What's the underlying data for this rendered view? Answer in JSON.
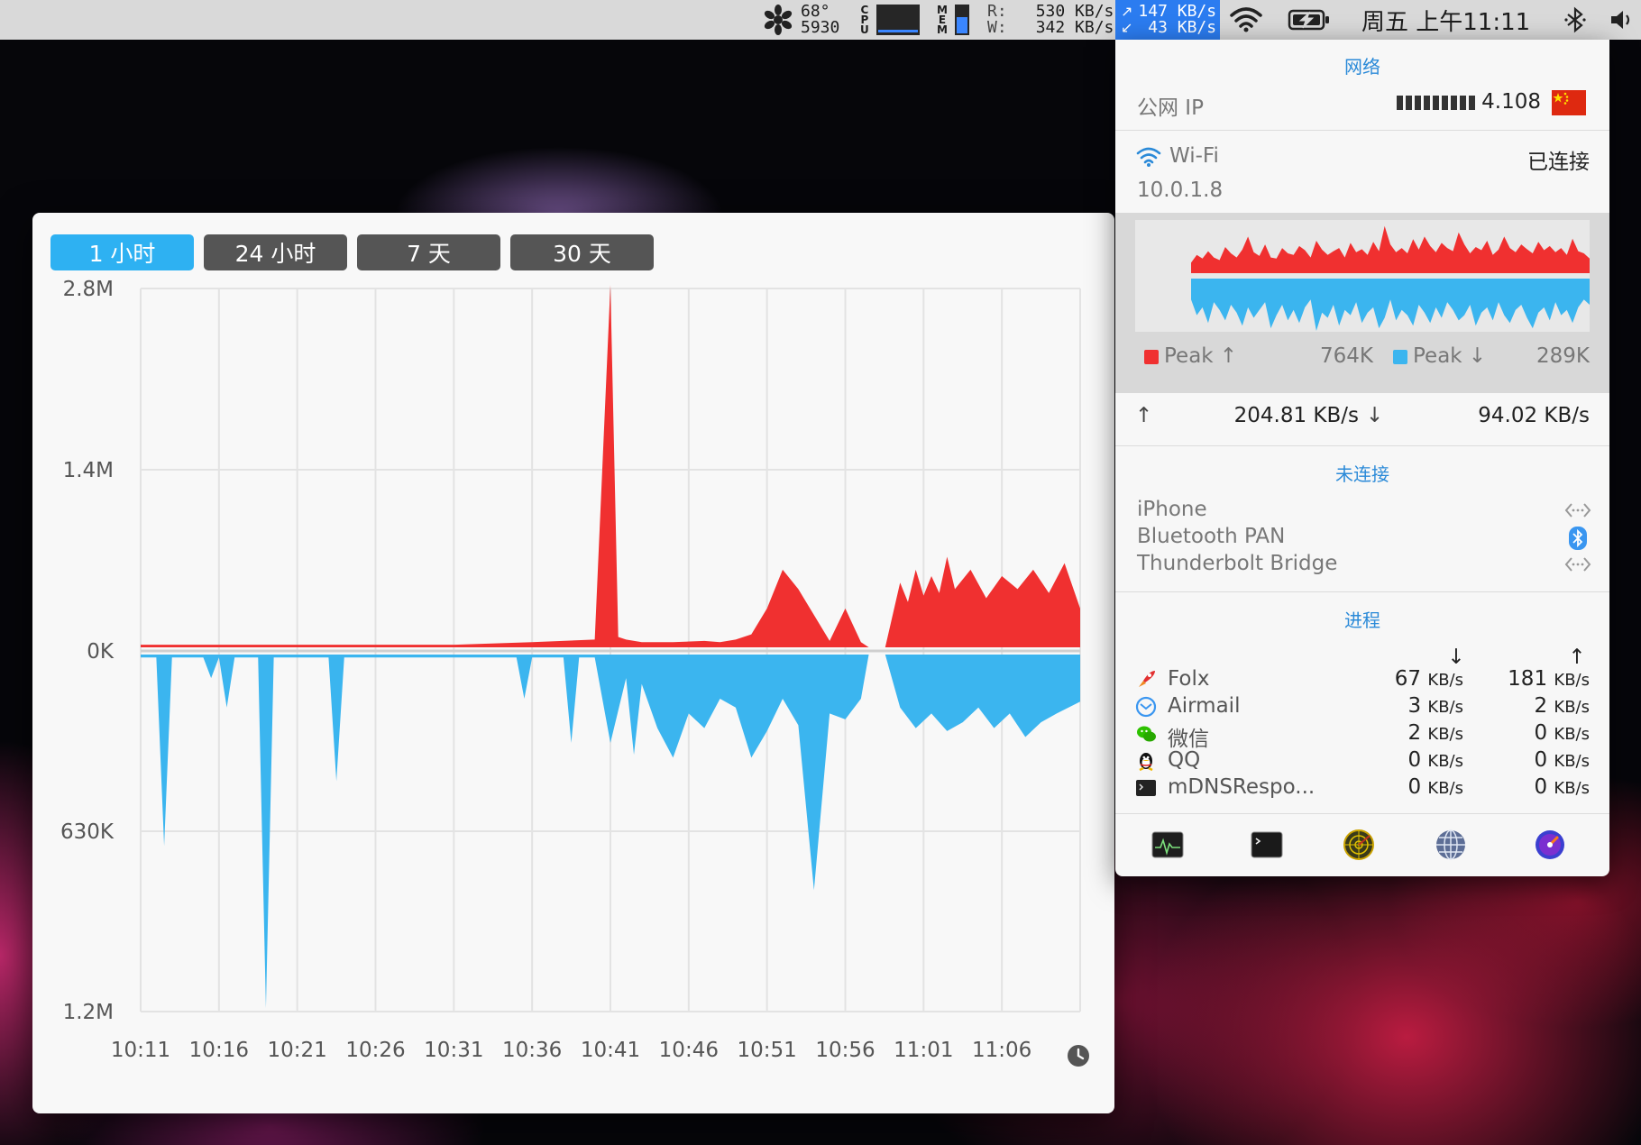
{
  "menubar": {
    "temp": "68°",
    "fan": "5930",
    "cpu_label": "CPU",
    "mem_label": "MEM",
    "disk_read_label": "R:",
    "disk_write_label": "W:",
    "disk_read": "530 KB/s",
    "disk_write": "342 KB/s",
    "net_up": "147 KB/s",
    "net_down": "43 KB/s",
    "clock": "周五 上午11:11"
  },
  "ranges": [
    "1 小时",
    "24 小时",
    "7 天",
    "30 天"
  ],
  "active_range": 0,
  "chart_data": {
    "type": "area",
    "yticks": [
      "2.8M",
      "1.4M",
      "0K",
      "630K",
      "1.2M"
    ],
    "xticks": [
      "10:11",
      "10:16",
      "10:21",
      "10:26",
      "10:31",
      "10:36",
      "10:41",
      "10:46",
      "10:51",
      "10:56",
      "11:01",
      "11:06"
    ],
    "upload_max": 2800,
    "download_max": 1200,
    "series": [
      {
        "name": "upload",
        "color": "#f03030",
        "x": [
          0,
          10,
          20,
          30,
          40,
          50,
          58,
          60,
          61,
          62,
          64,
          68,
          72,
          74,
          76,
          78,
          80,
          82,
          84,
          86,
          88,
          90,
          92,
          93,
          93.1,
          95,
          95.1,
          97,
          98,
          99,
          100,
          101,
          102,
          103,
          104,
          106,
          108,
          110,
          112,
          114,
          116,
          118,
          120
        ],
        "values": [
          20,
          20,
          20,
          20,
          20,
          40,
          60,
          2800,
          80,
          60,
          40,
          40,
          50,
          40,
          60,
          100,
          300,
          600,
          450,
          250,
          50,
          300,
          40,
          0,
          null,
          null,
          0,
          500,
          350,
          600,
          400,
          550,
          420,
          700,
          450,
          600,
          380,
          550,
          450,
          600,
          420,
          650,
          300
        ]
      },
      {
        "name": "download",
        "color": "#3bb5ef",
        "x": [
          0,
          2,
          3,
          4,
          6,
          8,
          9,
          10,
          11,
          12,
          14,
          15,
          16,
          17,
          18,
          20,
          24,
          25,
          26,
          30,
          36,
          40,
          48,
          49,
          50,
          54,
          55,
          56,
          58,
          60,
          62,
          63,
          64,
          66,
          68,
          70,
          72,
          74,
          76,
          78,
          80,
          82,
          84,
          86,
          88,
          90,
          92,
          93,
          93.1,
          95,
          95.1,
          97,
          99,
          101,
          103,
          105,
          107,
          109,
          111,
          113,
          115,
          117,
          120
        ],
        "values": [
          10,
          10,
          650,
          10,
          10,
          10,
          80,
          10,
          180,
          10,
          10,
          10,
          1200,
          10,
          10,
          10,
          10,
          430,
          10,
          10,
          10,
          10,
          10,
          150,
          10,
          10,
          300,
          10,
          10,
          300,
          80,
          340,
          100,
          250,
          350,
          200,
          250,
          150,
          180,
          350,
          260,
          150,
          240,
          800,
          200,
          220,
          150,
          0,
          null,
          null,
          0,
          180,
          250,
          200,
          260,
          230,
          180,
          250,
          200,
          280,
          230,
          200,
          160
        ]
      }
    ]
  },
  "panel": {
    "title": "网络",
    "public_ip_label": "公网 IP",
    "public_ip": "4.108",
    "wifi_name": "Wi-Fi",
    "wifi_status": "已连接",
    "local_ip": "10.0.1.8",
    "mini_chart": {
      "type": "area",
      "series": [
        {
          "name": "Peak ↑",
          "color": "#f03030",
          "values": [
            20,
            35,
            28,
            42,
            30,
            25,
            50,
            38,
            30,
            45,
            70,
            40,
            33,
            55,
            30,
            28,
            48,
            38,
            35,
            52,
            44,
            30,
            62,
            45,
            35,
            42,
            48,
            30,
            58,
            40,
            46,
            35,
            60,
            42,
            90,
            55,
            40,
            48,
            38,
            65,
            45,
            70,
            52,
            40,
            58,
            48,
            42,
            78,
            55,
            38,
            50,
            44,
            62,
            35,
            45,
            70,
            48,
            40,
            55,
            46,
            38,
            60,
            44,
            52,
            40,
            48,
            35,
            66,
            42,
            38,
            28
          ]
        },
        {
          "name": "Peak ↓",
          "color": "#3bb5ef",
          "values": [
            40,
            70,
            55,
            85,
            45,
            60,
            80,
            50,
            65,
            90,
            55,
            75,
            60,
            45,
            95,
            70,
            50,
            80,
            60,
            85,
            55,
            40,
            100,
            65,
            75,
            50,
            90,
            60,
            70,
            45,
            85,
            65,
            55,
            95,
            75,
            40,
            80,
            60,
            70,
            90,
            50,
            65,
            85,
            55,
            75,
            45,
            60,
            80,
            70,
            50,
            90,
            65,
            55,
            80,
            45,
            70,
            85,
            60,
            50,
            75,
            95,
            65,
            55,
            80,
            45,
            70,
            60,
            85,
            55,
            40,
            50
          ]
        }
      ],
      "peak_up_label": "Peak ↑",
      "peak_up_value": "764K",
      "peak_down_label": "Peak ↓",
      "peak_down_value": "289K"
    },
    "up_speed": "204.81 KB/s",
    "down_speed": "94.02 KB/s",
    "not_connected_title": "未连接",
    "interfaces": [
      "iPhone",
      "Bluetooth PAN",
      "Thunderbolt Bridge"
    ],
    "process_title": "进程",
    "process_down_arrow": "↓",
    "process_up_arrow": "↑",
    "processes": [
      {
        "name": "Folx",
        "down": "67",
        "up": "181"
      },
      {
        "name": "Airmail",
        "down": "3",
        "up": "2"
      },
      {
        "name": "微信",
        "down": "2",
        "up": "0"
      },
      {
        "name": "QQ",
        "down": "0",
        "up": "0"
      },
      {
        "name": "mDNSRespo...",
        "down": "0",
        "up": "0"
      }
    ],
    "unit": "KB/s",
    "dock_icons": [
      "activity-monitor-icon",
      "terminal-icon",
      "network-radar-icon",
      "network-utility-icon",
      "istat-icon"
    ]
  }
}
